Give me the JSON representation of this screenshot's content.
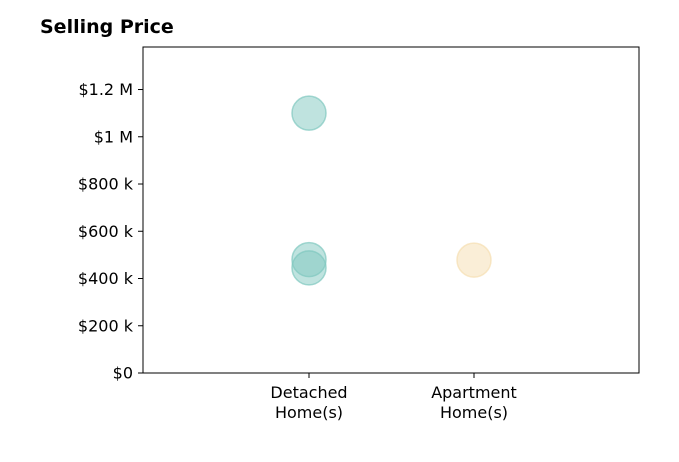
{
  "chart_data": {
    "type": "scatter",
    "title": "Selling Price",
    "xlabel": "",
    "ylabel": "",
    "categories": [
      "Detached\nHome(s)",
      "Apartment\nHome(s)"
    ],
    "ylim": [
      0,
      1380000
    ],
    "yticks": [
      {
        "value": 0,
        "label": "$0"
      },
      {
        "value": 200000,
        "label": "$200 k"
      },
      {
        "value": 400000,
        "label": "$400 k"
      },
      {
        "value": 600000,
        "label": "$600 k"
      },
      {
        "value": 800000,
        "label": "$800 k"
      },
      {
        "value": 1000000,
        "label": "$1 M"
      },
      {
        "value": 1200000,
        "label": "$1.2 M"
      }
    ],
    "grid": false,
    "points": [
      {
        "category": "Detached\nHome(s)",
        "value": 1100000,
        "color": "#7fc8bf"
      },
      {
        "category": "Detached\nHome(s)",
        "value": 480000,
        "color": "#7fc8bf"
      },
      {
        "category": "Detached\nHome(s)",
        "value": 445000,
        "color": "#7fc8bf"
      },
      {
        "category": "Apartment\nHome(s)",
        "value": 478000,
        "color": "#f5deb0"
      }
    ]
  }
}
